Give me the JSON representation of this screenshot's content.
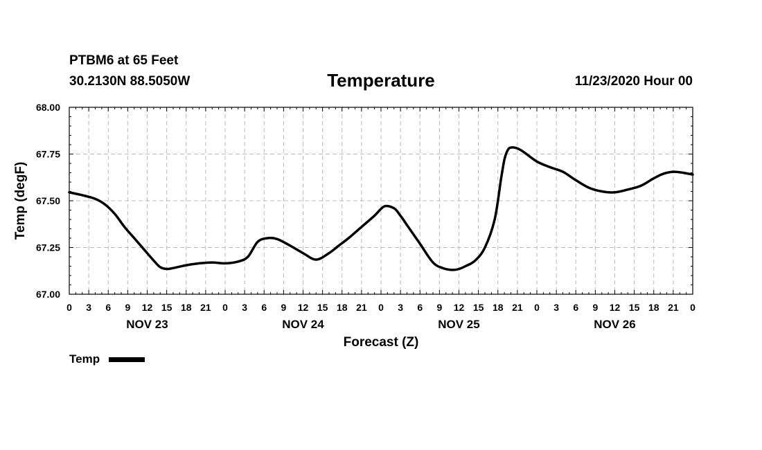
{
  "header": {
    "station": "PTBM6 at 65 Feet",
    "coords": "30.2130N 88.5050W",
    "timestamp": "11/23/2020 Hour 00"
  },
  "chart_data": {
    "type": "line",
    "title": "Temperature",
    "xlabel": "Forecast (Z)",
    "ylabel": "Temp (degF)",
    "xlim": [
      0,
      96
    ],
    "ylim": [
      67.0,
      68.0
    ],
    "y_ticks": [
      "67.00",
      "67.25",
      "67.50",
      "67.75",
      "68.00"
    ],
    "x_tick_labels": [
      "0",
      "3",
      "6",
      "9",
      "12",
      "15",
      "18",
      "21",
      "0",
      "3",
      "6",
      "9",
      "12",
      "15",
      "18",
      "21",
      "0",
      "3",
      "6",
      "9",
      "12",
      "15",
      "18",
      "21",
      "0",
      "3",
      "6",
      "9",
      "12",
      "15",
      "18",
      "21",
      "0"
    ],
    "day_labels": [
      {
        "label": "NOV 23",
        "hour": 12
      },
      {
        "label": "NOV 24",
        "hour": 36
      },
      {
        "label": "NOV 25",
        "hour": 60
      },
      {
        "label": "NOV 26",
        "hour": 84
      }
    ],
    "grid": true,
    "legend": {
      "position": "bottom-left",
      "entries": [
        "Temp"
      ]
    },
    "series": [
      {
        "name": "Temp",
        "color": "#000000",
        "x": [
          0,
          2,
          4,
          5.5,
          7,
          8.5,
          10,
          11.5,
          13,
          14,
          15,
          16,
          18,
          20,
          22,
          24,
          26,
          27.5,
          29,
          30.5,
          32,
          34,
          36,
          38,
          40,
          41.5,
          43,
          45,
          47,
          48.5,
          50,
          51,
          52,
          54,
          56,
          57.5,
          59,
          60,
          61,
          62.5,
          64,
          65.5,
          66.5,
          67,
          67.5,
          68,
          69,
          70,
          72,
          74,
          76,
          78,
          80,
          82,
          84,
          86,
          88,
          90,
          91.5,
          93,
          94.5,
          96
        ],
        "y": [
          67.545,
          67.53,
          67.51,
          67.48,
          67.43,
          67.36,
          67.3,
          67.24,
          67.18,
          67.145,
          67.135,
          67.14,
          67.155,
          67.165,
          67.17,
          67.165,
          67.175,
          67.2,
          67.28,
          67.3,
          67.295,
          67.26,
          67.22,
          67.185,
          67.22,
          67.26,
          67.3,
          67.36,
          67.42,
          67.47,
          67.46,
          67.42,
          67.37,
          67.27,
          67.17,
          67.14,
          67.13,
          67.135,
          67.15,
          67.18,
          67.25,
          67.4,
          67.62,
          67.72,
          67.77,
          67.785,
          67.78,
          67.76,
          67.71,
          67.68,
          67.655,
          67.61,
          67.57,
          67.55,
          67.545,
          67.56,
          67.58,
          67.62,
          67.645,
          67.655,
          67.65,
          67.64
        ]
      }
    ]
  }
}
